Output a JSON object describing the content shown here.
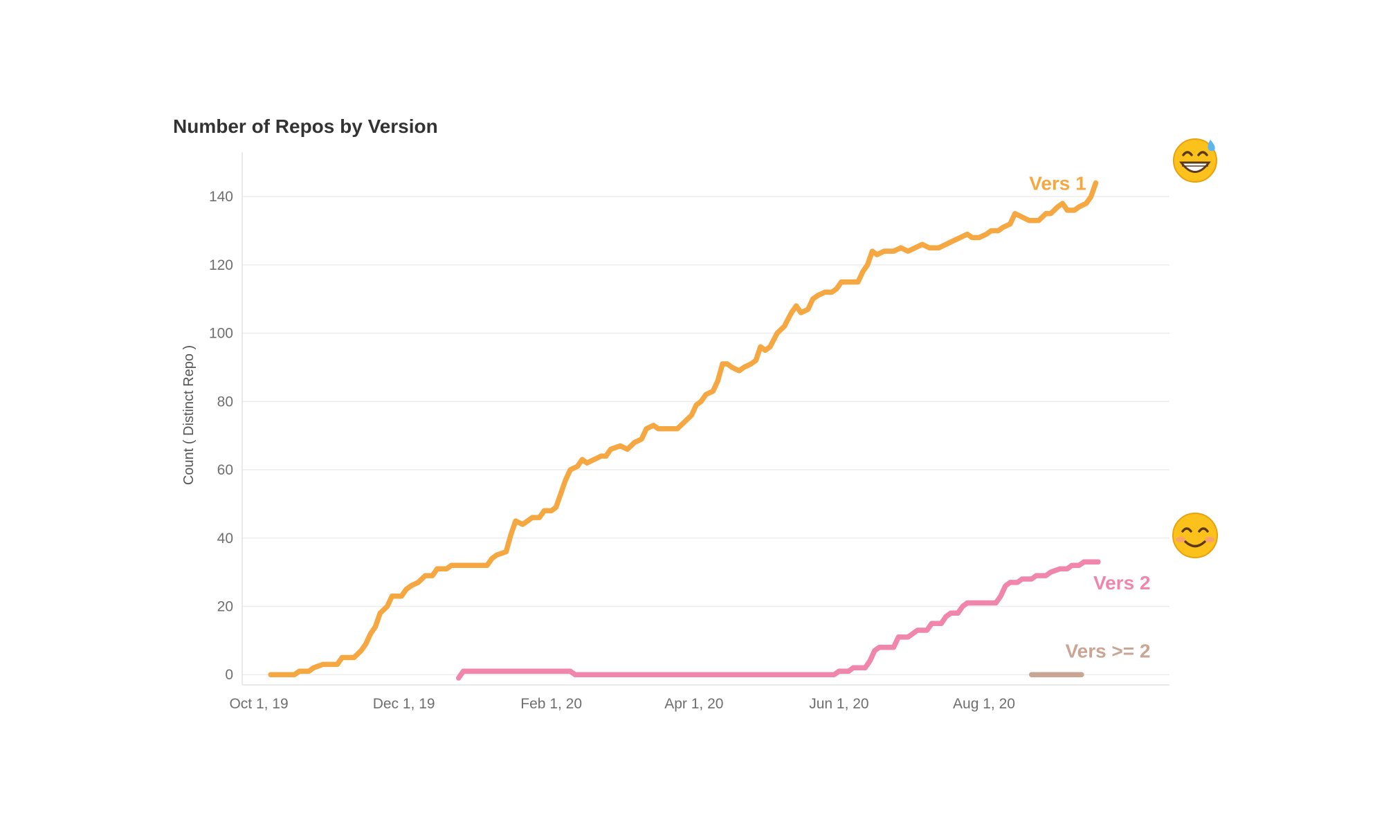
{
  "chart_data": {
    "type": "line",
    "title": "Number of Repos by Version",
    "xlabel": "",
    "ylabel": "Count ( Distinct Repo )",
    "ylim": [
      -3,
      153
    ],
    "yticks": [
      0,
      20,
      40,
      60,
      80,
      100,
      120,
      140
    ],
    "xlim": [
      "2019-09-24",
      "2020-10-18"
    ],
    "xticks": [
      {
        "date": "2019-10-01",
        "label": "Oct 1, 19"
      },
      {
        "date": "2019-12-01",
        "label": "Dec 1, 19"
      },
      {
        "date": "2020-02-01",
        "label": "Feb 1, 20"
      },
      {
        "date": "2020-04-01",
        "label": "Apr 1, 20"
      },
      {
        "date": "2020-06-01",
        "label": "Jun 1, 20"
      },
      {
        "date": "2020-08-01",
        "label": "Aug 1, 20"
      }
    ],
    "grid": true,
    "series": [
      {
        "name": "Vers 1",
        "color": "#f5a742",
        "points": [
          [
            "2019-10-06",
            0
          ],
          [
            "2019-10-12",
            0
          ],
          [
            "2019-10-16",
            0
          ],
          [
            "2019-10-18",
            1
          ],
          [
            "2019-10-22",
            1
          ],
          [
            "2019-10-24",
            2
          ],
          [
            "2019-10-28",
            3
          ],
          [
            "2019-11-03",
            3
          ],
          [
            "2019-11-05",
            5
          ],
          [
            "2019-11-10",
            5
          ],
          [
            "2019-11-13",
            7
          ],
          [
            "2019-11-15",
            9
          ],
          [
            "2019-11-17",
            12
          ],
          [
            "2019-11-19",
            14
          ],
          [
            "2019-11-21",
            18
          ],
          [
            "2019-11-24",
            20
          ],
          [
            "2019-11-26",
            23
          ],
          [
            "2019-11-30",
            23
          ],
          [
            "2019-12-02",
            25
          ],
          [
            "2019-12-04",
            26
          ],
          [
            "2019-12-07",
            27
          ],
          [
            "2019-12-10",
            29
          ],
          [
            "2019-12-13",
            29
          ],
          [
            "2019-12-15",
            31
          ],
          [
            "2019-12-19",
            31
          ],
          [
            "2019-12-21",
            32
          ],
          [
            "2020-01-05",
            32
          ],
          [
            "2020-01-07",
            34
          ],
          [
            "2020-01-09",
            35
          ],
          [
            "2020-01-13",
            36
          ],
          [
            "2020-01-15",
            41
          ],
          [
            "2020-01-17",
            45
          ],
          [
            "2020-01-20",
            44
          ],
          [
            "2020-01-22",
            45
          ],
          [
            "2020-01-24",
            46
          ],
          [
            "2020-01-27",
            46
          ],
          [
            "2020-01-29",
            48
          ],
          [
            "2020-02-01",
            48
          ],
          [
            "2020-02-03",
            49
          ],
          [
            "2020-02-05",
            53
          ],
          [
            "2020-02-07",
            57
          ],
          [
            "2020-02-09",
            60
          ],
          [
            "2020-02-12",
            61
          ],
          [
            "2020-02-14",
            63
          ],
          [
            "2020-02-16",
            62
          ],
          [
            "2020-02-19",
            63
          ],
          [
            "2020-02-22",
            64
          ],
          [
            "2020-02-24",
            64
          ],
          [
            "2020-02-26",
            66
          ],
          [
            "2020-03-01",
            67
          ],
          [
            "2020-03-04",
            66
          ],
          [
            "2020-03-07",
            68
          ],
          [
            "2020-03-10",
            69
          ],
          [
            "2020-03-12",
            72
          ],
          [
            "2020-03-15",
            73
          ],
          [
            "2020-03-17",
            72
          ],
          [
            "2020-03-22",
            72
          ],
          [
            "2020-03-25",
            72
          ],
          [
            "2020-03-28",
            74
          ],
          [
            "2020-03-31",
            76
          ],
          [
            "2020-04-02",
            79
          ],
          [
            "2020-04-04",
            80
          ],
          [
            "2020-04-06",
            82
          ],
          [
            "2020-04-09",
            83
          ],
          [
            "2020-04-11",
            86
          ],
          [
            "2020-04-13",
            91
          ],
          [
            "2020-04-15",
            91
          ],
          [
            "2020-04-17",
            90
          ],
          [
            "2020-04-20",
            89
          ],
          [
            "2020-04-22",
            90
          ],
          [
            "2020-04-25",
            91
          ],
          [
            "2020-04-27",
            92
          ],
          [
            "2020-04-29",
            96
          ],
          [
            "2020-05-01",
            95
          ],
          [
            "2020-05-03",
            96
          ],
          [
            "2020-05-06",
            100
          ],
          [
            "2020-05-09",
            102
          ],
          [
            "2020-05-12",
            106
          ],
          [
            "2020-05-14",
            108
          ],
          [
            "2020-05-16",
            106
          ],
          [
            "2020-05-19",
            107
          ],
          [
            "2020-05-21",
            110
          ],
          [
            "2020-05-23",
            111
          ],
          [
            "2020-05-26",
            112
          ],
          [
            "2020-05-29",
            112
          ],
          [
            "2020-05-31",
            113
          ],
          [
            "2020-06-02",
            115
          ],
          [
            "2020-06-05",
            115
          ],
          [
            "2020-06-09",
            115
          ],
          [
            "2020-06-11",
            118
          ],
          [
            "2020-06-13",
            120
          ],
          [
            "2020-06-15",
            124
          ],
          [
            "2020-06-17",
            123
          ],
          [
            "2020-06-20",
            124
          ],
          [
            "2020-06-24",
            124
          ],
          [
            "2020-06-27",
            125
          ],
          [
            "2020-06-30",
            124
          ],
          [
            "2020-07-03",
            125
          ],
          [
            "2020-07-06",
            126
          ],
          [
            "2020-07-09",
            125
          ],
          [
            "2020-07-13",
            125
          ],
          [
            "2020-07-16",
            126
          ],
          [
            "2020-07-19",
            127
          ],
          [
            "2020-07-22",
            128
          ],
          [
            "2020-07-25",
            129
          ],
          [
            "2020-07-27",
            128
          ],
          [
            "2020-07-30",
            128
          ],
          [
            "2020-08-02",
            129
          ],
          [
            "2020-08-04",
            130
          ],
          [
            "2020-08-07",
            130
          ],
          [
            "2020-08-09",
            131
          ],
          [
            "2020-08-12",
            132
          ],
          [
            "2020-08-14",
            135
          ],
          [
            "2020-08-17",
            134
          ],
          [
            "2020-08-20",
            133
          ],
          [
            "2020-08-24",
            133
          ],
          [
            "2020-08-27",
            135
          ],
          [
            "2020-08-29",
            135
          ],
          [
            "2020-09-01",
            137
          ],
          [
            "2020-09-03",
            138
          ],
          [
            "2020-09-05",
            136
          ],
          [
            "2020-09-08",
            136
          ],
          [
            "2020-09-10",
            137
          ],
          [
            "2020-09-13",
            138
          ],
          [
            "2020-09-15",
            140
          ],
          [
            "2020-09-17",
            144
          ]
        ]
      },
      {
        "name": "Vers 2",
        "color": "#f086ac",
        "points": [
          [
            "2019-12-24",
            -1
          ],
          [
            "2019-12-26",
            1
          ],
          [
            "2020-01-20",
            1
          ],
          [
            "2020-02-09",
            1
          ],
          [
            "2020-02-11",
            0
          ],
          [
            "2020-03-15",
            0
          ],
          [
            "2020-04-15",
            0
          ],
          [
            "2020-05-15",
            0
          ],
          [
            "2020-05-30",
            0
          ],
          [
            "2020-06-01",
            1
          ],
          [
            "2020-06-05",
            1
          ],
          [
            "2020-06-07",
            2
          ],
          [
            "2020-06-12",
            2
          ],
          [
            "2020-06-14",
            4
          ],
          [
            "2020-06-16",
            7
          ],
          [
            "2020-06-18",
            8
          ],
          [
            "2020-06-24",
            8
          ],
          [
            "2020-06-26",
            11
          ],
          [
            "2020-06-30",
            11
          ],
          [
            "2020-07-02",
            12
          ],
          [
            "2020-07-04",
            13
          ],
          [
            "2020-07-08",
            13
          ],
          [
            "2020-07-10",
            15
          ],
          [
            "2020-07-14",
            15
          ],
          [
            "2020-07-16",
            17
          ],
          [
            "2020-07-18",
            18
          ],
          [
            "2020-07-21",
            18
          ],
          [
            "2020-07-23",
            20
          ],
          [
            "2020-07-25",
            21
          ],
          [
            "2020-08-06",
            21
          ],
          [
            "2020-08-08",
            23
          ],
          [
            "2020-08-10",
            26
          ],
          [
            "2020-08-12",
            27
          ],
          [
            "2020-08-15",
            27
          ],
          [
            "2020-08-17",
            28
          ],
          [
            "2020-08-21",
            28
          ],
          [
            "2020-08-23",
            29
          ],
          [
            "2020-08-27",
            29
          ],
          [
            "2020-08-29",
            30
          ],
          [
            "2020-09-02",
            31
          ],
          [
            "2020-09-05",
            31
          ],
          [
            "2020-09-07",
            32
          ],
          [
            "2020-09-10",
            32
          ],
          [
            "2020-09-12",
            33
          ],
          [
            "2020-09-18",
            33
          ]
        ]
      },
      {
        "name": "Vers >= 2",
        "color": "#c9a594",
        "points": [
          [
            "2020-08-21",
            0
          ],
          [
            "2020-09-11",
            0
          ]
        ]
      }
    ],
    "labels": [
      {
        "series": "Vers 1",
        "text": "Vers 1",
        "x": "2020-09-13",
        "y": 144
      },
      {
        "series": "Vers 2",
        "text": "Vers 2",
        "x": "2020-10-10",
        "y": 27
      },
      {
        "series": "Vers >= 2",
        "text": "Vers >= 2",
        "x": "2020-10-10",
        "y": 7
      }
    ],
    "icons": [
      {
        "name": "grinning-sweat-face-icon",
        "series": "Vers 1"
      },
      {
        "name": "smiling-face-icon",
        "series": "Vers 2"
      }
    ]
  }
}
